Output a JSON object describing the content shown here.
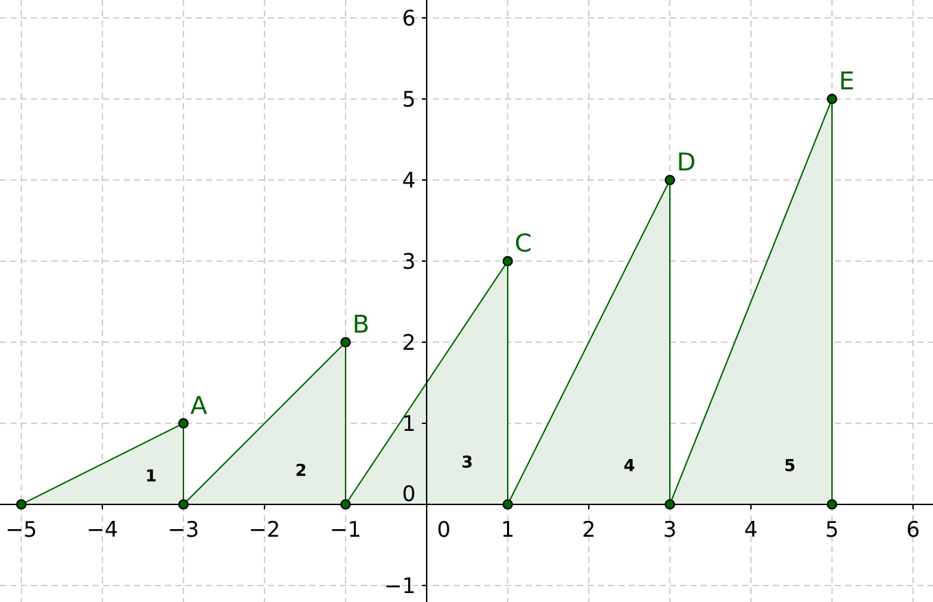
{
  "chart_data": {
    "type": "diagram",
    "axes": {
      "x_range": [
        -5.3,
        6.2
      ],
      "y_range": [
        -1.2,
        6.2
      ],
      "x_ticks": [
        -5,
        -4,
        -3,
        -2,
        -1,
        1,
        2,
        3,
        4,
        5,
        6
      ],
      "y_ticks": [
        -1,
        1,
        2,
        3,
        4,
        5,
        6
      ],
      "origin_label": "0",
      "grid": true
    },
    "colors": {
      "line": "#006400",
      "fill": "#e6efe6",
      "point_fill": "#006400",
      "grid": "#c0c0c0",
      "axis": "#000000"
    },
    "triangles": [
      {
        "label": "1",
        "vertices": [
          [
            -5,
            0
          ],
          [
            -3,
            1
          ],
          [
            -3,
            0
          ]
        ],
        "label_at": [
          -3.4,
          0.35
        ]
      },
      {
        "label": "2",
        "vertices": [
          [
            -3,
            0
          ],
          [
            -1,
            2
          ],
          [
            -1,
            0
          ]
        ],
        "label_at": [
          -1.55,
          0.42
        ]
      },
      {
        "label": "3",
        "vertices": [
          [
            -1,
            0
          ],
          [
            1,
            3
          ],
          [
            1,
            0
          ]
        ],
        "label_at": [
          0.5,
          0.52
        ]
      },
      {
        "label": "4",
        "vertices": [
          [
            1,
            0
          ],
          [
            3,
            4
          ],
          [
            3,
            0
          ]
        ],
        "label_at": [
          2.5,
          0.48
        ]
      },
      {
        "label": "5",
        "vertices": [
          [
            3,
            0
          ],
          [
            5,
            5
          ],
          [
            5,
            0
          ]
        ],
        "label_at": [
          4.48,
          0.48
        ]
      }
    ],
    "points": [
      {
        "label": "A",
        "x": -3,
        "y": 1
      },
      {
        "label": "B",
        "x": -1,
        "y": 2
      },
      {
        "label": "C",
        "x": 1,
        "y": 3
      },
      {
        "label": "D",
        "x": 3,
        "y": 4
      },
      {
        "label": "E",
        "x": 5,
        "y": 5
      }
    ],
    "base_points": [
      {
        "x": -5,
        "y": 0
      },
      {
        "x": -3,
        "y": 0
      },
      {
        "x": -1,
        "y": 0
      },
      {
        "x": 1,
        "y": 0
      },
      {
        "x": 3,
        "y": 0
      },
      {
        "x": 5,
        "y": 0
      }
    ]
  }
}
